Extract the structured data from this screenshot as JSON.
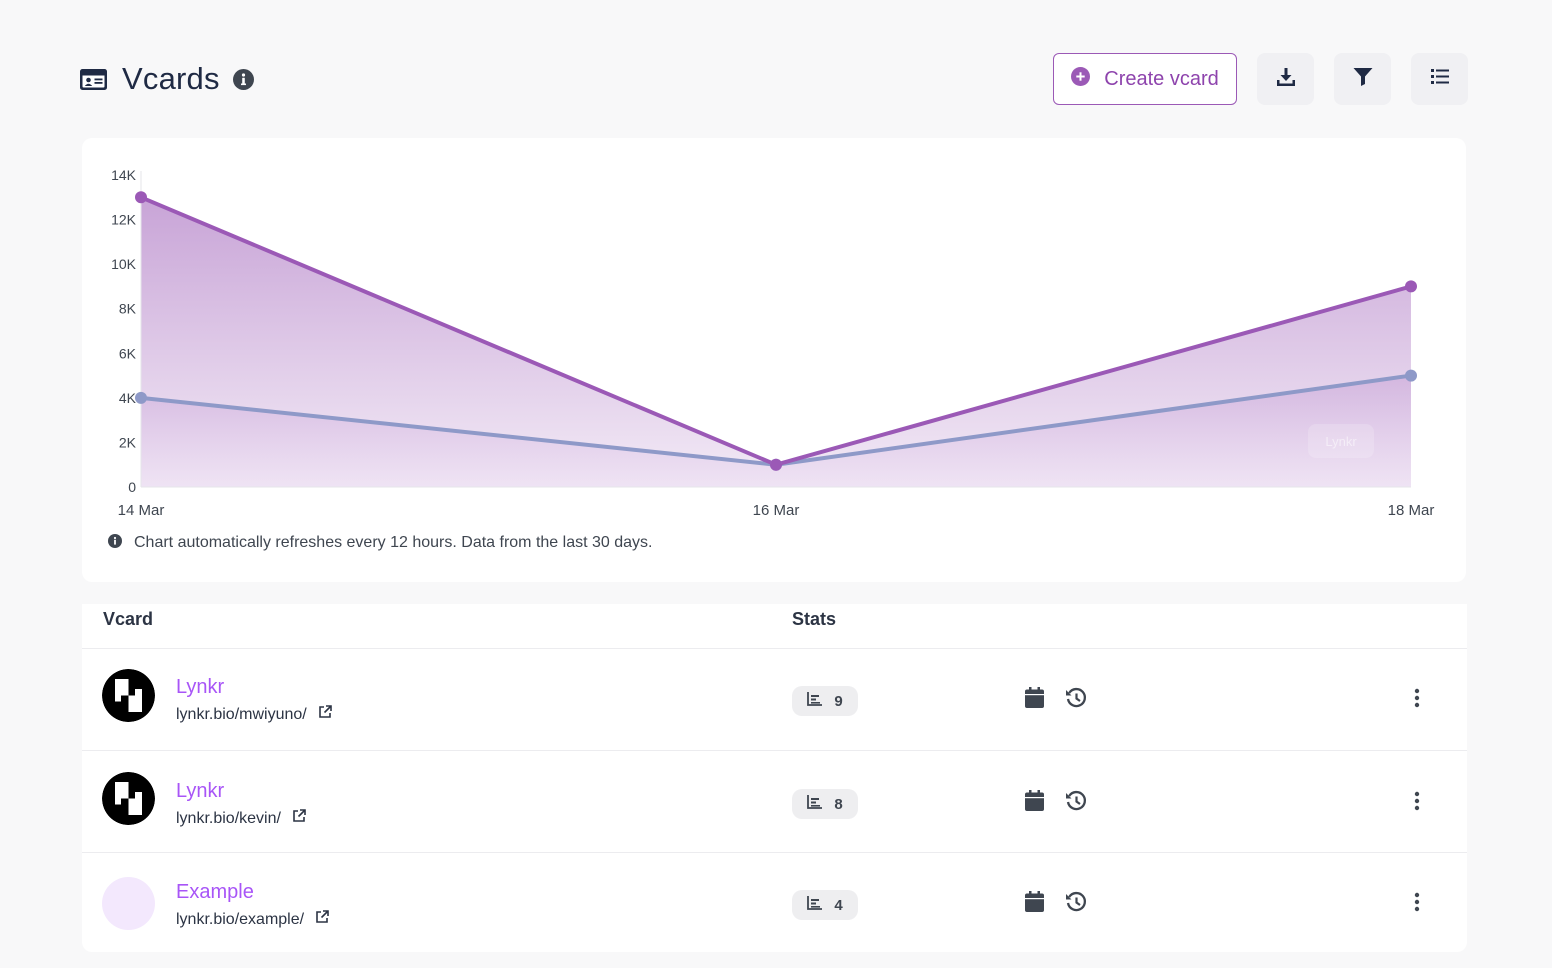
{
  "header": {
    "title": "Vcards",
    "create_label": "Create vcard",
    "icons": {
      "title": "id-card-icon",
      "info": "info-circle-icon",
      "create": "plus-circle-icon",
      "download": "download-icon",
      "filter": "filter-icon",
      "list": "list-icon"
    }
  },
  "chart": {
    "note": "Chart automatically refreshes every 12 hours. Data from the last 30 days.",
    "watermark": "Lynkr"
  },
  "chart_data": {
    "type": "area",
    "categories": [
      "14 Mar",
      "16 Mar",
      "18 Mar"
    ],
    "series": [
      {
        "values": [
          13000,
          1000,
          9000
        ],
        "color": "#9b59b6"
      },
      {
        "values": [
          4000,
          1000,
          5000
        ],
        "color": "#8e99c8"
      }
    ],
    "ylim": [
      0,
      14000
    ],
    "yticks": [
      "0",
      "2K",
      "4K",
      "6K",
      "8K",
      "10K",
      "12K",
      "14K"
    ],
    "grid": false,
    "legend": "none"
  },
  "table": {
    "headers": {
      "vcard": "Vcard",
      "stats": "Stats"
    },
    "rows": [
      {
        "name": "Lynkr",
        "url": "lynkr.bio/mwiyuno/",
        "stats": "9",
        "avatar": "checker-logo"
      },
      {
        "name": "Lynkr",
        "url": "lynkr.bio/kevin/",
        "stats": "8",
        "avatar": "checker-logo"
      },
      {
        "name": "Example",
        "url": "lynkr.bio/example/",
        "stats": "4",
        "avatar": "light-purple-circle"
      }
    ]
  },
  "colors": {
    "accent": "#9b59b6",
    "link": "#a855f7",
    "series_secondary": "#8e99c8"
  }
}
